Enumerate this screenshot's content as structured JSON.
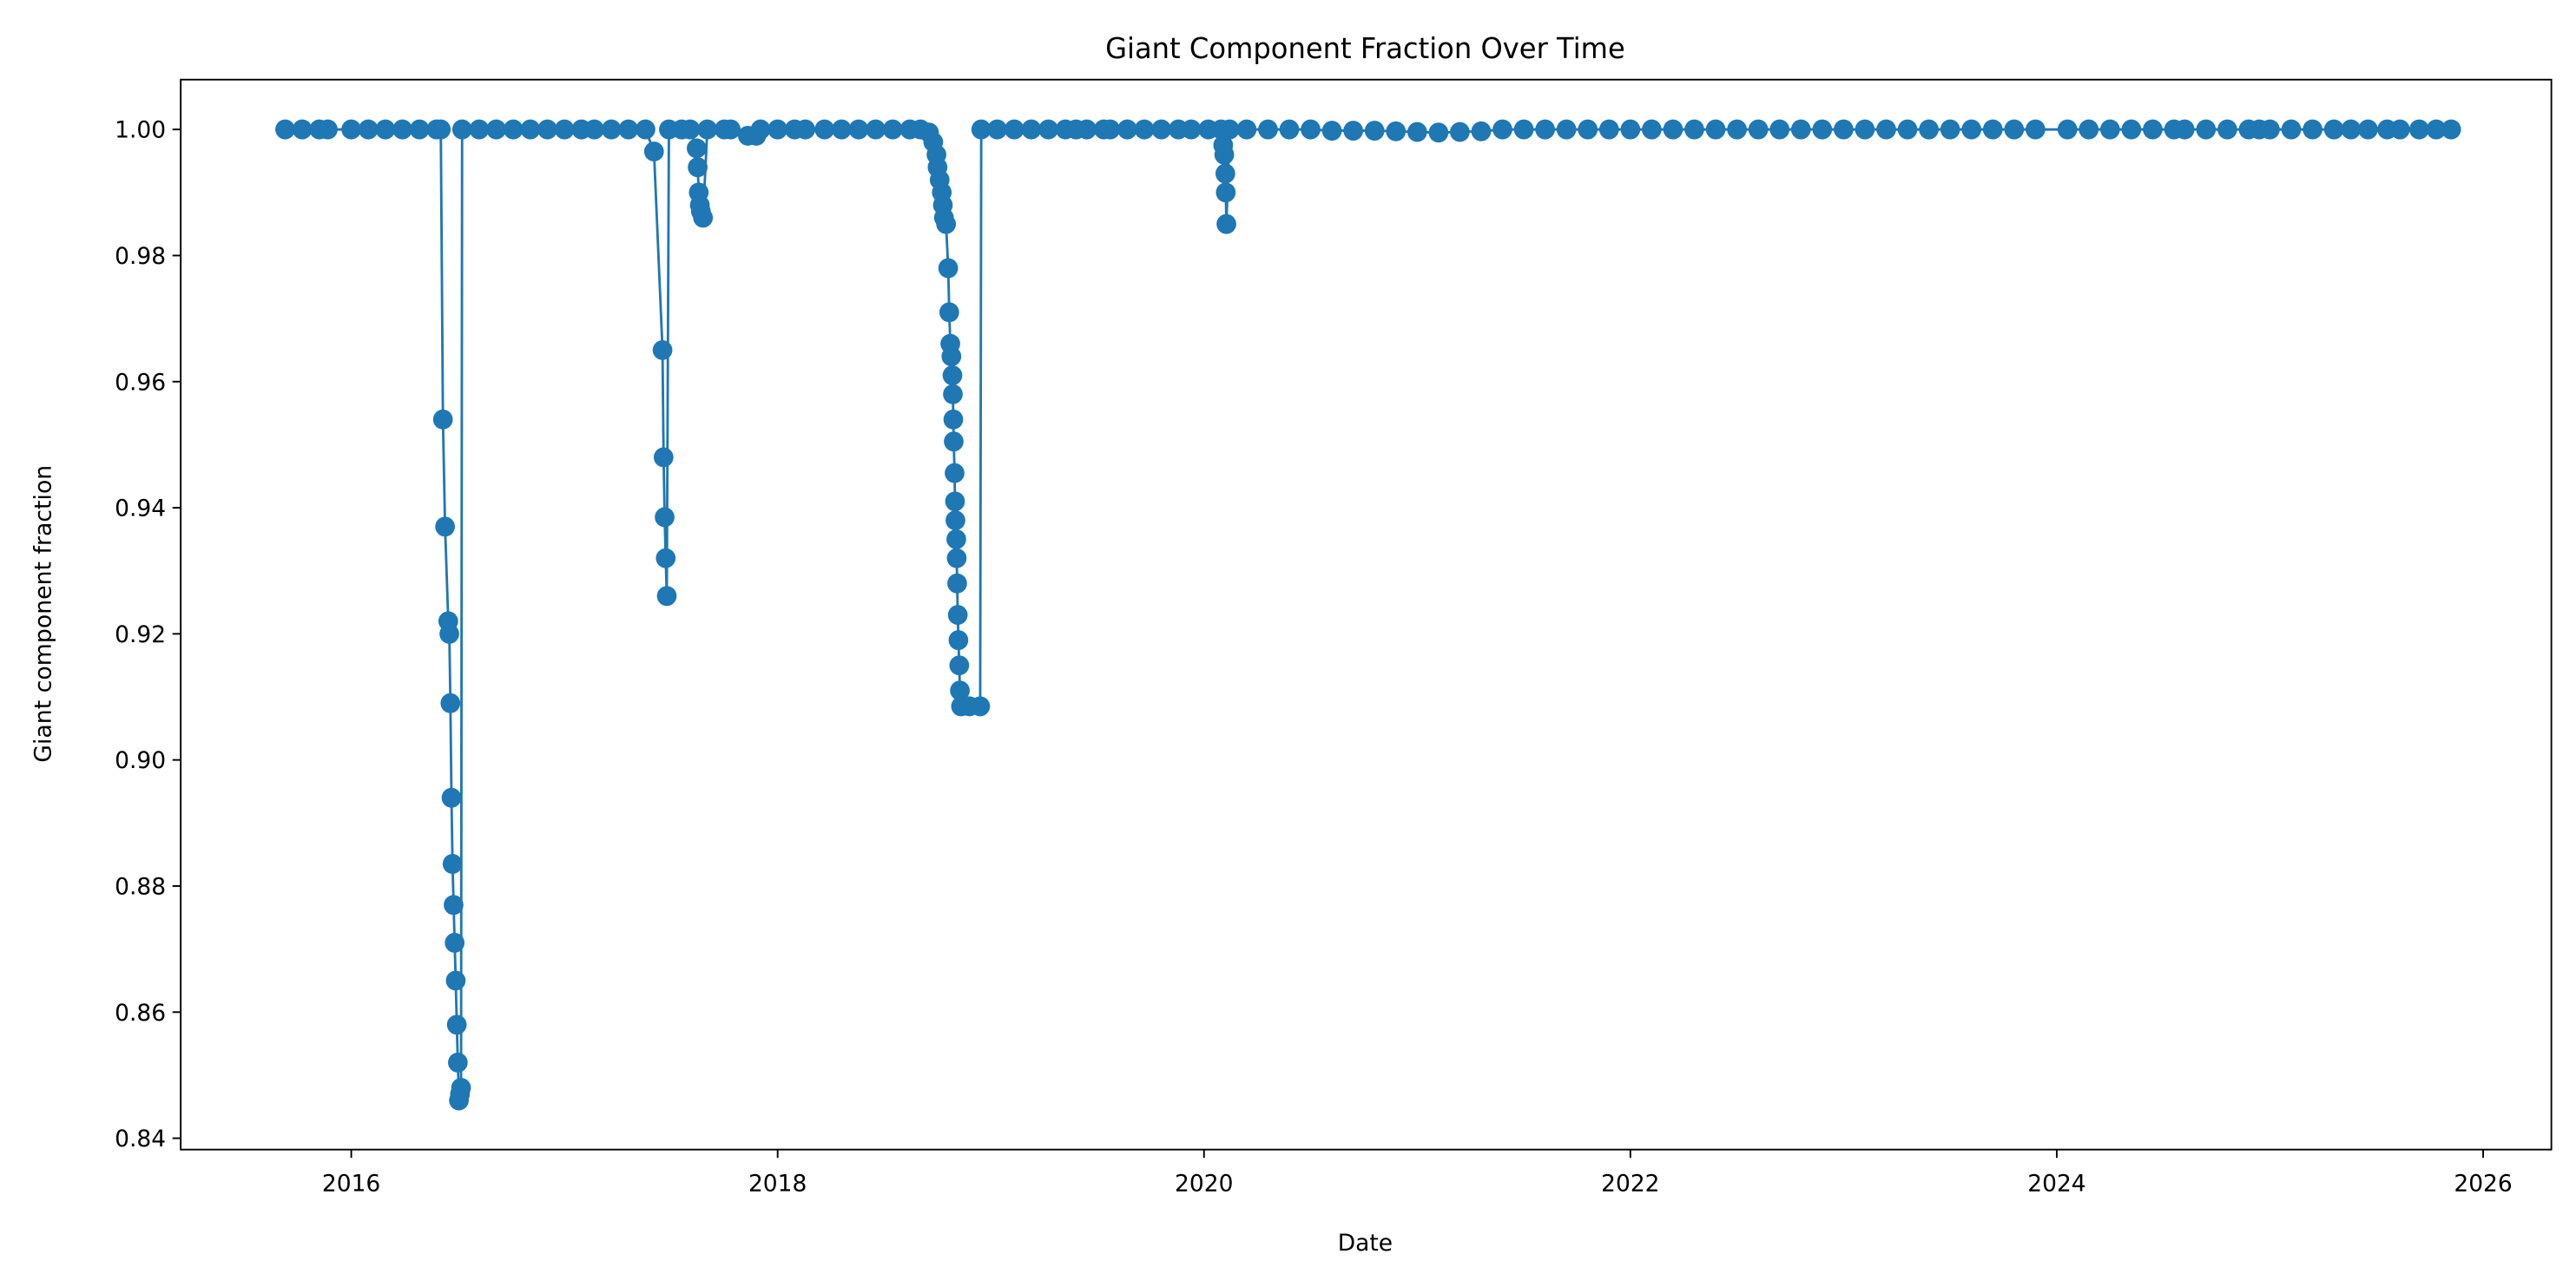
{
  "chart_data": {
    "type": "line",
    "title": "Giant Component Fraction Over Time",
    "xlabel": "Date",
    "ylabel": "Giant component fraction",
    "color": "#1f77b4",
    "xlim": [
      2015.2,
      2026.32
    ],
    "xticks": [
      2016,
      2018,
      2020,
      2022,
      2024,
      2026
    ],
    "ylim": [
      0.8382,
      1.0079
    ],
    "yticks": [
      0.84,
      0.86,
      0.88,
      {
        "value": 0.9,
        "label": "0.90"
      },
      0.92,
      0.94,
      0.96,
      0.98,
      {
        "value": 1,
        "label": "1.00"
      }
    ],
    "x": [
      2015.69,
      2015.77,
      2015.85,
      2015.89,
      2016.0,
      2016.08,
      2016.16,
      2016.24,
      2016.32,
      2016.4,
      2016.42,
      2016.43,
      2016.44,
      2016.455,
      2016.46,
      2016.465,
      2016.47,
      2016.475,
      2016.48,
      2016.485,
      2016.49,
      2016.495,
      2016.5,
      2016.505,
      2016.51,
      2016.515,
      2016.52,
      2016.6,
      2016.68,
      2016.76,
      2016.84,
      2016.92,
      2017.0,
      2017.08,
      2017.14,
      2017.22,
      2017.3,
      2017.38,
      2017.42,
      2017.46,
      2017.465,
      2017.47,
      2017.475,
      2017.48,
      2017.49,
      2017.55,
      2017.59,
      2017.62,
      2017.625,
      2017.63,
      2017.635,
      2017.64,
      2017.65,
      2017.67,
      2017.75,
      2017.78,
      2017.86,
      2017.9,
      2017.92,
      2018.0,
      2018.08,
      2018.13,
      2018.22,
      2018.3,
      2018.38,
      2018.46,
      2018.54,
      2018.62,
      2018.67,
      2018.71,
      2018.73,
      2018.745,
      2018.75,
      2018.76,
      2018.77,
      2018.775,
      2018.78,
      2018.79,
      2018.8,
      2018.805,
      2018.81,
      2018.815,
      2018.82,
      2018.822,
      2018.824,
      2018.826,
      2018.83,
      2018.832,
      2018.834,
      2018.838,
      2018.84,
      2018.842,
      2018.845,
      2018.848,
      2018.852,
      2018.855,
      2018.86,
      2018.9,
      2018.95,
      2018.955,
      2019.03,
      2019.11,
      2019.19,
      2019.27,
      2019.35,
      2019.4,
      2019.45,
      2019.53,
      2019.56,
      2019.64,
      2019.72,
      2019.8,
      2019.88,
      2019.94,
      2020.02,
      2020.08,
      2020.09,
      2020.095,
      2020.1,
      2020.102,
      2020.105,
      2020.12,
      2020.2,
      2020.3,
      2020.4,
      2020.5,
      2020.6,
      2020.7,
      2020.8,
      2020.9,
      2021.0,
      2021.1,
      2021.2,
      2021.3,
      2021.4,
      2021.5,
      2021.6,
      2021.7,
      2021.8,
      2021.9,
      2022.0,
      2022.1,
      2022.2,
      2022.3,
      2022.4,
      2022.5,
      2022.6,
      2022.7,
      2022.8,
      2022.9,
      2023.0,
      2023.1,
      2023.2,
      2023.3,
      2023.4,
      2023.5,
      2023.6,
      2023.7,
      2023.8,
      2023.9,
      2024.05,
      2024.15,
      2024.25,
      2024.35,
      2024.45,
      2024.55,
      2024.6,
      2024.7,
      2024.8,
      2024.9,
      2024.95,
      2025.0,
      2025.1,
      2025.2,
      2025.3,
      2025.38,
      2025.46,
      2025.55,
      2025.61,
      2025.7,
      2025.78,
      2025.85
    ],
    "values": [
      1,
      1,
      1,
      1,
      1,
      1,
      1,
      1,
      1,
      1,
      1,
      0.954,
      0.937,
      0.922,
      0.92,
      0.909,
      0.894,
      0.8835,
      0.877,
      0.871,
      0.865,
      0.858,
      0.852,
      0.846,
      0.847,
      0.848,
      1,
      1,
      1,
      1,
      1,
      1,
      1,
      1,
      1,
      1,
      1,
      1,
      0.9965,
      0.965,
      0.948,
      0.9385,
      0.932,
      0.926,
      1,
      1,
      1,
      0.997,
      0.994,
      0.99,
      0.988,
      0.987,
      0.986,
      1,
      1,
      1,
      0.999,
      0.999,
      1,
      1,
      1,
      1,
      1,
      1,
      1,
      1,
      1,
      1,
      1,
      0.9995,
      0.998,
      0.996,
      0.994,
      0.992,
      0.99,
      0.988,
      0.986,
      0.985,
      0.978,
      0.971,
      0.966,
      0.964,
      0.961,
      0.958,
      0.954,
      0.9505,
      0.9455,
      0.941,
      0.938,
      0.935,
      0.932,
      0.928,
      0.923,
      0.919,
      0.915,
      0.911,
      0.9085,
      0.9085,
      0.9085,
      1,
      1,
      1,
      1,
      1,
      1,
      1,
      1,
      1,
      1,
      1,
      1,
      1,
      1,
      1,
      1,
      1,
      0.9975,
      0.996,
      0.993,
      0.99,
      0.985,
      1,
      1,
      1,
      1,
      1,
      0.9998,
      0.9998,
      0.9998,
      0.9997,
      0.9996,
      0.9995,
      0.9996,
      0.9997,
      1,
      1,
      1,
      1,
      1,
      1,
      1,
      1,
      1,
      1,
      1,
      1,
      1,
      1,
      1,
      1,
      1,
      1,
      1,
      1,
      1,
      1,
      1,
      1,
      1,
      1,
      1,
      1,
      1,
      1,
      1,
      1,
      1,
      1,
      1,
      1,
      1,
      1,
      1,
      1,
      1,
      1,
      1,
      1,
      1,
      1,
      1,
      1
    ]
  }
}
